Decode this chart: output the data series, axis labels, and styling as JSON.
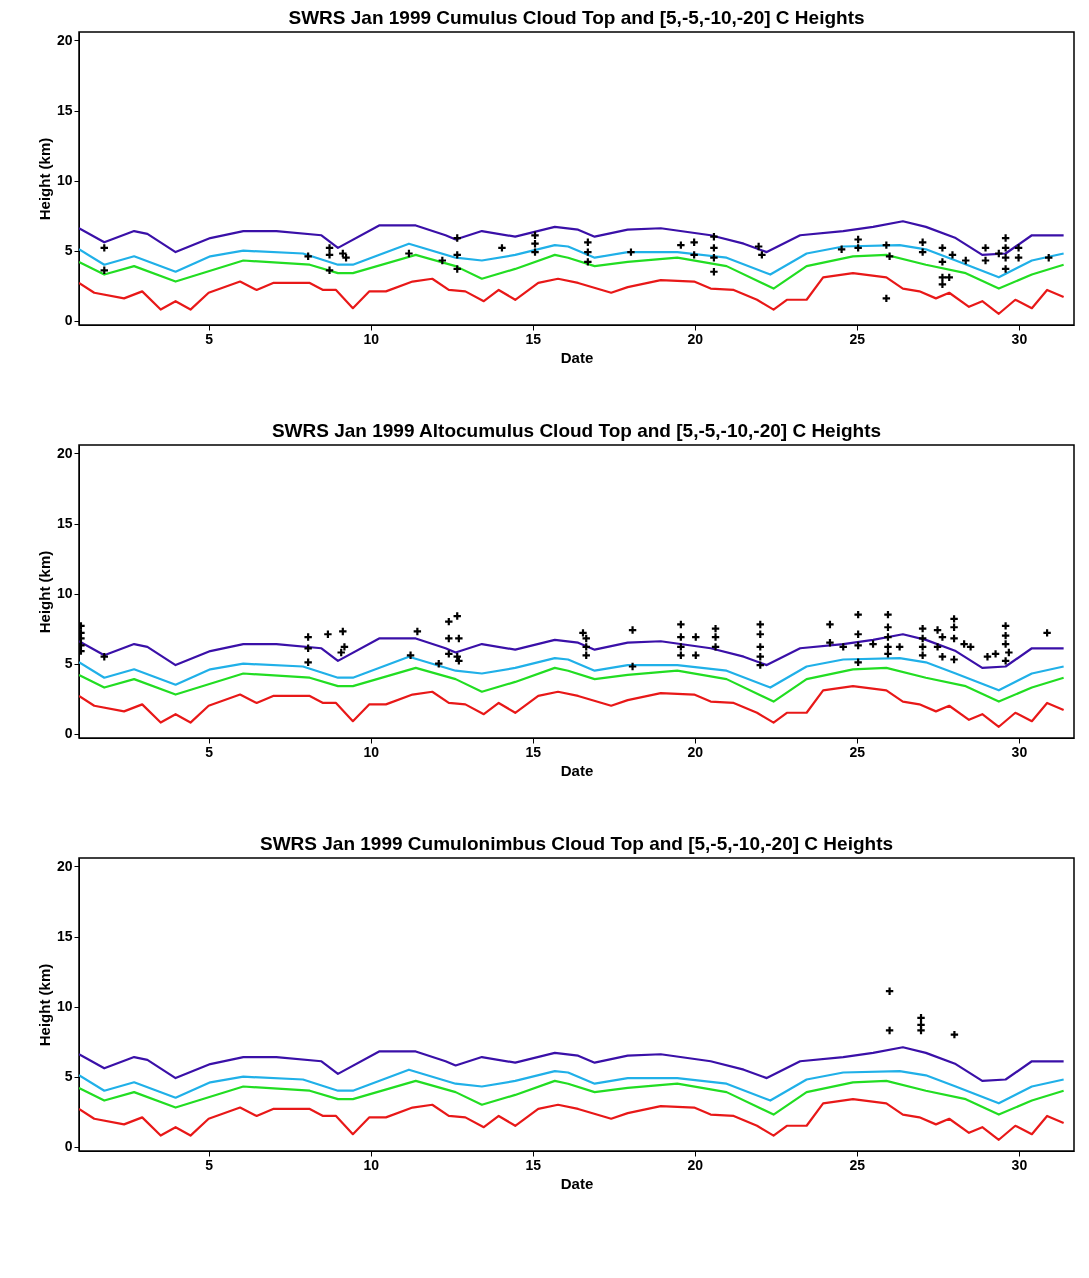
{
  "chart_data": [
    {
      "type": "line",
      "title": "SWRS Jan 1999 Cumulus Cloud Top and [5,-5,-10,-20] C Heights",
      "xlabel": "Date",
      "ylabel": "Height (km)",
      "xlim": [
        1,
        31.7
      ],
      "xticks": [
        5,
        10,
        15,
        20,
        25,
        30
      ],
      "ylim": [
        -0.3,
        20.6
      ],
      "yticks": [
        0,
        5,
        10,
        15,
        20
      ],
      "grid": false,
      "series": [
        {
          "color": "#3a10a8",
          "x": [
            1.0,
            1.78,
            2.7,
            3.11,
            3.98,
            5.05,
            6.07,
            7.09,
            8.48,
            8.99,
            10.26,
            11.39,
            12.31,
            12.62,
            13.43,
            14.46,
            15.68,
            16.4,
            16.91,
            17.93,
            18.95,
            20.49,
            21.51,
            22.22,
            23.25,
            24.58,
            25.5,
            26.42,
            27.13,
            28.05,
            28.87,
            29.59,
            30.4,
            31.38
          ],
          "values": [
            6.6,
            5.6,
            6.4,
            6.2,
            4.9,
            5.9,
            6.4,
            6.4,
            6.1,
            5.2,
            6.8,
            6.8,
            6.1,
            5.8,
            6.4,
            6.0,
            6.7,
            6.5,
            6.0,
            6.5,
            6.6,
            6.1,
            5.5,
            4.9,
            6.1,
            6.4,
            6.7,
            7.1,
            6.7,
            5.9,
            4.7,
            4.8,
            6.1,
            6.1
          ]
        },
        {
          "color": "#20b0e8",
          "x": [
            1.0,
            1.78,
            2.7,
            3.98,
            5.05,
            6.07,
            7.91,
            8.99,
            9.45,
            11.18,
            12.62,
            13.43,
            14.46,
            15.68,
            16.09,
            16.91,
            17.93,
            19.46,
            20.98,
            22.33,
            23.45,
            24.58,
            26.32,
            27.13,
            28.05,
            29.38,
            30.4,
            31.38
          ],
          "values": [
            5.1,
            4.0,
            4.6,
            3.5,
            4.6,
            5.0,
            4.8,
            4.0,
            4.0,
            5.5,
            4.5,
            4.3,
            4.7,
            5.4,
            5.3,
            4.5,
            4.9,
            4.9,
            4.5,
            3.3,
            4.8,
            5.3,
            5.4,
            5.1,
            4.3,
            3.1,
            4.3,
            4.8
          ]
        },
        {
          "color": "#22dd22",
          "x": [
            1.0,
            1.78,
            2.7,
            3.98,
            6.07,
            8.12,
            8.99,
            9.45,
            11.39,
            12.62,
            13.43,
            14.46,
            15.68,
            16.09,
            16.91,
            17.93,
            19.46,
            20.98,
            22.43,
            23.45,
            24.88,
            25.91,
            27.13,
            28.36,
            29.38,
            30.4,
            31.38
          ],
          "values": [
            4.2,
            3.3,
            3.9,
            2.8,
            4.3,
            4.0,
            3.4,
            3.4,
            4.7,
            3.9,
            3.0,
            3.7,
            4.7,
            4.5,
            3.9,
            4.2,
            4.5,
            3.9,
            2.3,
            3.9,
            4.6,
            4.7,
            4.0,
            3.4,
            2.3,
            3.3,
            4.0
          ]
        },
        {
          "color": "#e81818",
          "x": [
            1.0,
            1.47,
            2.39,
            2.95,
            3.52,
            3.98,
            4.44,
            5.0,
            5.97,
            6.48,
            6.99,
            8.12,
            8.53,
            8.93,
            9.45,
            9.96,
            10.47,
            11.29,
            11.9,
            12.41,
            12.92,
            13.49,
            13.95,
            14.46,
            15.17,
            15.78,
            16.4,
            17.42,
            17.93,
            18.95,
            19.98,
            20.49,
            21.2,
            21.92,
            22.43,
            22.84,
            23.45,
            23.96,
            24.88,
            25.91,
            26.42,
            26.93,
            27.44,
            27.85,
            28.46,
            28.87,
            29.38,
            29.89,
            30.4,
            30.87,
            31.38
          ],
          "values": [
            2.7,
            2.0,
            1.6,
            2.1,
            0.8,
            1.4,
            0.8,
            2.0,
            2.8,
            2.2,
            2.7,
            2.7,
            2.2,
            2.2,
            0.9,
            2.1,
            2.1,
            2.8,
            3.0,
            2.2,
            2.1,
            1.4,
            2.2,
            1.5,
            2.7,
            3.0,
            2.7,
            2.0,
            2.4,
            2.9,
            2.8,
            2.3,
            2.2,
            1.5,
            0.8,
            1.5,
            1.5,
            3.1,
            3.4,
            3.1,
            2.3,
            2.1,
            1.6,
            2.0,
            1.0,
            1.4,
            0.5,
            1.5,
            0.9,
            2.2,
            1.7
          ]
        },
        {
          "type": "scatter",
          "marker": "cross",
          "color": "#000000",
          "x": [
            1.78,
            1.78,
            8.07,
            8.73,
            8.73,
            8.73,
            9.14,
            9.24,
            11.18,
            12.21,
            12.67,
            12.67,
            12.67,
            14.05,
            15.07,
            15.07,
            15.07,
            16.7,
            16.7,
            16.7,
            18.03,
            19.57,
            19.98,
            19.98,
            20.59,
            20.59,
            20.59,
            20.59,
            21.97,
            22.07,
            24.53,
            25.04,
            25.04,
            25.91,
            26.01,
            25.91,
            27.03,
            27.03,
            27.64,
            27.64,
            27.64,
            27.64,
            27.95,
            27.85,
            28.36,
            28.97,
            28.97,
            29.38,
            29.59,
            29.59,
            29.59,
            29.59,
            29.99,
            29.99,
            30.92
          ],
          "values": [
            5.2,
            3.6,
            4.6,
            5.2,
            4.7,
            3.6,
            4.8,
            4.5,
            4.8,
            4.3,
            5.9,
            4.7,
            3.7,
            5.2,
            6.1,
            5.5,
            4.9,
            5.6,
            4.9,
            4.2,
            4.9,
            5.4,
            5.6,
            4.7,
            6.0,
            5.2,
            4.5,
            3.5,
            5.3,
            4.7,
            5.1,
            5.8,
            5.2,
            5.4,
            4.6,
            1.6,
            5.6,
            4.9,
            5.2,
            4.2,
            3.1,
            2.6,
            4.7,
            3.1,
            4.3,
            5.2,
            4.3,
            4.8,
            5.9,
            5.2,
            4.5,
            3.7,
            5.2,
            4.5,
            4.5
          ]
        }
      ]
    },
    {
      "type": "line",
      "title": "SWRS Jan 1999 Altocumulus Cloud Top and [5,-5,-10,-20] C Heights",
      "xlabel": "Date",
      "ylabel": "Height (km)",
      "xlim": [
        1,
        31.7
      ],
      "xticks": [
        5,
        10,
        15,
        20,
        25,
        30
      ],
      "ylim": [
        -0.3,
        20.6
      ],
      "yticks": [
        0,
        5,
        10,
        15,
        20
      ],
      "grid": false,
      "series": [
        {
          "color": "#3a10a8",
          "x": [
            1.0,
            1.78,
            2.7,
            3.11,
            3.98,
            5.05,
            6.07,
            7.09,
            8.48,
            8.99,
            10.26,
            11.39,
            12.31,
            12.62,
            13.43,
            14.46,
            15.68,
            16.4,
            16.91,
            17.93,
            18.95,
            20.49,
            21.51,
            22.22,
            23.25,
            24.58,
            25.5,
            26.42,
            27.13,
            28.05,
            28.87,
            29.59,
            30.4,
            31.38
          ],
          "values": [
            6.6,
            5.6,
            6.4,
            6.2,
            4.9,
            5.9,
            6.4,
            6.4,
            6.1,
            5.2,
            6.8,
            6.8,
            6.1,
            5.8,
            6.4,
            6.0,
            6.7,
            6.5,
            6.0,
            6.5,
            6.6,
            6.1,
            5.5,
            4.9,
            6.1,
            6.4,
            6.7,
            7.1,
            6.7,
            5.9,
            4.7,
            4.8,
            6.1,
            6.1
          ]
        },
        {
          "color": "#20b0e8",
          "x": [
            1.0,
            1.78,
            2.7,
            3.98,
            5.05,
            6.07,
            7.91,
            8.99,
            9.45,
            11.18,
            12.62,
            13.43,
            14.46,
            15.68,
            16.09,
            16.91,
            17.93,
            19.46,
            20.98,
            22.33,
            23.45,
            24.58,
            26.32,
            27.13,
            28.05,
            29.38,
            30.4,
            31.38
          ],
          "values": [
            5.1,
            4.0,
            4.6,
            3.5,
            4.6,
            5.0,
            4.8,
            4.0,
            4.0,
            5.5,
            4.5,
            4.3,
            4.7,
            5.4,
            5.3,
            4.5,
            4.9,
            4.9,
            4.5,
            3.3,
            4.8,
            5.3,
            5.4,
            5.1,
            4.3,
            3.1,
            4.3,
            4.8
          ]
        },
        {
          "color": "#22dd22",
          "x": [
            1.0,
            1.78,
            2.7,
            3.98,
            6.07,
            8.12,
            8.99,
            9.45,
            11.39,
            12.62,
            13.43,
            14.46,
            15.68,
            16.09,
            16.91,
            17.93,
            19.46,
            20.98,
            22.43,
            23.45,
            24.88,
            25.91,
            27.13,
            28.36,
            29.38,
            30.4,
            31.38
          ],
          "values": [
            4.2,
            3.3,
            3.9,
            2.8,
            4.3,
            4.0,
            3.4,
            3.4,
            4.7,
            3.9,
            3.0,
            3.7,
            4.7,
            4.5,
            3.9,
            4.2,
            4.5,
            3.9,
            2.3,
            3.9,
            4.6,
            4.7,
            4.0,
            3.4,
            2.3,
            3.3,
            4.0
          ]
        },
        {
          "color": "#e81818",
          "x": [
            1.0,
            1.47,
            2.39,
            2.95,
            3.52,
            3.98,
            4.44,
            5.0,
            5.97,
            6.48,
            6.99,
            8.12,
            8.53,
            8.93,
            9.45,
            9.96,
            10.47,
            11.29,
            11.9,
            12.41,
            12.92,
            13.49,
            13.95,
            14.46,
            15.17,
            15.78,
            16.4,
            17.42,
            17.93,
            18.95,
            19.98,
            20.49,
            21.2,
            21.92,
            22.43,
            22.84,
            23.45,
            23.96,
            24.88,
            25.91,
            26.42,
            26.93,
            27.44,
            27.85,
            28.46,
            28.87,
            29.38,
            29.89,
            30.4,
            30.87,
            31.38
          ],
          "values": [
            2.7,
            2.0,
            1.6,
            2.1,
            0.8,
            1.4,
            0.8,
            2.0,
            2.8,
            2.2,
            2.7,
            2.7,
            2.2,
            2.2,
            0.9,
            2.1,
            2.1,
            2.8,
            3.0,
            2.2,
            2.1,
            1.4,
            2.2,
            1.5,
            2.7,
            3.0,
            2.7,
            2.0,
            2.4,
            2.9,
            2.8,
            2.3,
            2.2,
            1.5,
            0.8,
            1.5,
            1.5,
            3.1,
            3.4,
            3.1,
            2.3,
            2.1,
            1.6,
            2.0,
            1.0,
            1.4,
            0.5,
            1.5,
            0.9,
            2.2,
            1.7
          ]
        },
        {
          "type": "scatter",
          "marker": "cross",
          "color": "#000000",
          "x": [
            1.06,
            1.06,
            1.06,
            1.06,
            1.06,
            1.78,
            8.07,
            8.07,
            8.07,
            8.68,
            9.14,
            9.19,
            9.09,
            11.44,
            11.23,
            12.1,
            12.41,
            12.67,
            12.41,
            12.72,
            12.41,
            12.67,
            12.72,
            16.55,
            16.65,
            16.65,
            16.65,
            18.08,
            18.08,
            19.57,
            19.57,
            19.57,
            19.57,
            20.03,
            20.03,
            20.64,
            20.64,
            20.64,
            22.02,
            22.02,
            22.02,
            22.02,
            22.02,
            24.17,
            24.17,
            24.58,
            25.04,
            25.04,
            25.04,
            25.04,
            25.5,
            25.96,
            25.96,
            25.96,
            25.96,
            25.96,
            26.32,
            27.03,
            27.03,
            27.03,
            27.03,
            27.49,
            27.64,
            27.49,
            27.64,
            28.0,
            28.0,
            28.0,
            28.0,
            28.31,
            28.51,
            29.03,
            29.28,
            29.59,
            29.59,
            29.59,
            29.69,
            29.59,
            30.87
          ],
          "values": [
            7.7,
            6.8,
            5.9,
            7.2,
            6.3,
            5.5,
            6.9,
            6.1,
            5.1,
            7.1,
            7.3,
            6.2,
            5.8,
            7.3,
            5.6,
            5.0,
            8.0,
            8.4,
            6.8,
            6.8,
            5.7,
            5.5,
            5.2,
            7.2,
            6.8,
            6.2,
            5.6,
            7.4,
            4.8,
            7.8,
            6.9,
            6.2,
            5.6,
            6.9,
            5.6,
            7.5,
            6.9,
            6.2,
            7.8,
            7.1,
            6.2,
            5.5,
            4.9,
            7.8,
            6.5,
            6.2,
            8.5,
            7.1,
            6.3,
            5.1,
            6.4,
            8.5,
            7.6,
            6.9,
            6.2,
            5.7,
            6.2,
            7.5,
            6.8,
            6.2,
            5.6,
            7.4,
            6.9,
            6.2,
            5.5,
            8.2,
            7.6,
            6.8,
            5.3,
            6.4,
            6.2,
            5.5,
            5.7,
            7.7,
            7.0,
            6.4,
            5.8,
            5.2,
            7.2
          ]
        }
      ]
    },
    {
      "type": "line",
      "title": "SWRS Jan 1999 Cumulonimbus Cloud Top and [5,-5,-10,-20] C Heights",
      "xlabel": "Date",
      "ylabel": "Height (km)",
      "xlim": [
        1,
        31.7
      ],
      "xticks": [
        5,
        10,
        15,
        20,
        25,
        30
      ],
      "ylim": [
        -0.3,
        20.6
      ],
      "yticks": [
        0,
        5,
        10,
        15,
        20
      ],
      "grid": false,
      "series": [
        {
          "color": "#3a10a8",
          "x": [
            1.0,
            1.78,
            2.7,
            3.11,
            3.98,
            5.05,
            6.07,
            7.09,
            8.48,
            8.99,
            10.26,
            11.39,
            12.31,
            12.62,
            13.43,
            14.46,
            15.68,
            16.4,
            16.91,
            17.93,
            18.95,
            20.49,
            21.51,
            22.22,
            23.25,
            24.58,
            25.5,
            26.42,
            27.13,
            28.05,
            28.87,
            29.59,
            30.4,
            31.38
          ],
          "values": [
            6.6,
            5.6,
            6.4,
            6.2,
            4.9,
            5.9,
            6.4,
            6.4,
            6.1,
            5.2,
            6.8,
            6.8,
            6.1,
            5.8,
            6.4,
            6.0,
            6.7,
            6.5,
            6.0,
            6.5,
            6.6,
            6.1,
            5.5,
            4.9,
            6.1,
            6.4,
            6.7,
            7.1,
            6.7,
            5.9,
            4.7,
            4.8,
            6.1,
            6.1
          ]
        },
        {
          "color": "#20b0e8",
          "x": [
            1.0,
            1.78,
            2.7,
            3.98,
            5.05,
            6.07,
            7.91,
            8.99,
            9.45,
            11.18,
            12.62,
            13.43,
            14.46,
            15.68,
            16.09,
            16.91,
            17.93,
            19.46,
            20.98,
            22.33,
            23.45,
            24.58,
            26.32,
            27.13,
            28.05,
            29.38,
            30.4,
            31.38
          ],
          "values": [
            5.1,
            4.0,
            4.6,
            3.5,
            4.6,
            5.0,
            4.8,
            4.0,
            4.0,
            5.5,
            4.5,
            4.3,
            4.7,
            5.4,
            5.3,
            4.5,
            4.9,
            4.9,
            4.5,
            3.3,
            4.8,
            5.3,
            5.4,
            5.1,
            4.3,
            3.1,
            4.3,
            4.8
          ]
        },
        {
          "color": "#22dd22",
          "x": [
            1.0,
            1.78,
            2.7,
            3.98,
            6.07,
            8.12,
            8.99,
            9.45,
            11.39,
            12.62,
            13.43,
            14.46,
            15.68,
            16.09,
            16.91,
            17.93,
            19.46,
            20.98,
            22.43,
            23.45,
            24.88,
            25.91,
            27.13,
            28.36,
            29.38,
            30.4,
            31.38
          ],
          "values": [
            4.2,
            3.3,
            3.9,
            2.8,
            4.3,
            4.0,
            3.4,
            3.4,
            4.7,
            3.9,
            3.0,
            3.7,
            4.7,
            4.5,
            3.9,
            4.2,
            4.5,
            3.9,
            2.3,
            3.9,
            4.6,
            4.7,
            4.0,
            3.4,
            2.3,
            3.3,
            4.0
          ]
        },
        {
          "color": "#e81818",
          "x": [
            1.0,
            1.47,
            2.39,
            2.95,
            3.52,
            3.98,
            4.44,
            5.0,
            5.97,
            6.48,
            6.99,
            8.12,
            8.53,
            8.93,
            9.45,
            9.96,
            10.47,
            11.29,
            11.9,
            12.41,
            12.92,
            13.49,
            13.95,
            14.46,
            15.17,
            15.78,
            16.4,
            17.42,
            17.93,
            18.95,
            19.98,
            20.49,
            21.2,
            21.92,
            22.43,
            22.84,
            23.45,
            23.96,
            24.88,
            25.91,
            26.42,
            26.93,
            27.44,
            27.85,
            28.46,
            28.87,
            29.38,
            29.89,
            30.4,
            30.87,
            31.38
          ],
          "values": [
            2.7,
            2.0,
            1.6,
            2.1,
            0.8,
            1.4,
            0.8,
            2.0,
            2.8,
            2.2,
            2.7,
            2.7,
            2.2,
            2.2,
            0.9,
            2.1,
            2.1,
            2.8,
            3.0,
            2.2,
            2.1,
            1.4,
            2.2,
            1.5,
            2.7,
            3.0,
            2.7,
            2.0,
            2.4,
            2.9,
            2.8,
            2.3,
            2.2,
            1.5,
            0.8,
            1.5,
            1.5,
            3.1,
            3.4,
            3.1,
            2.3,
            2.1,
            1.6,
            2.0,
            1.0,
            1.4,
            0.5,
            1.5,
            0.9,
            2.2,
            1.7
          ]
        },
        {
          "type": "scatter",
          "marker": "cross",
          "color": "#000000",
          "x": [
            26.01,
            26.01,
            26.98,
            26.98,
            26.98,
            28.01
          ],
          "values": [
            11.1,
            8.3,
            9.2,
            8.7,
            8.3,
            8.0
          ]
        }
      ]
    }
  ]
}
